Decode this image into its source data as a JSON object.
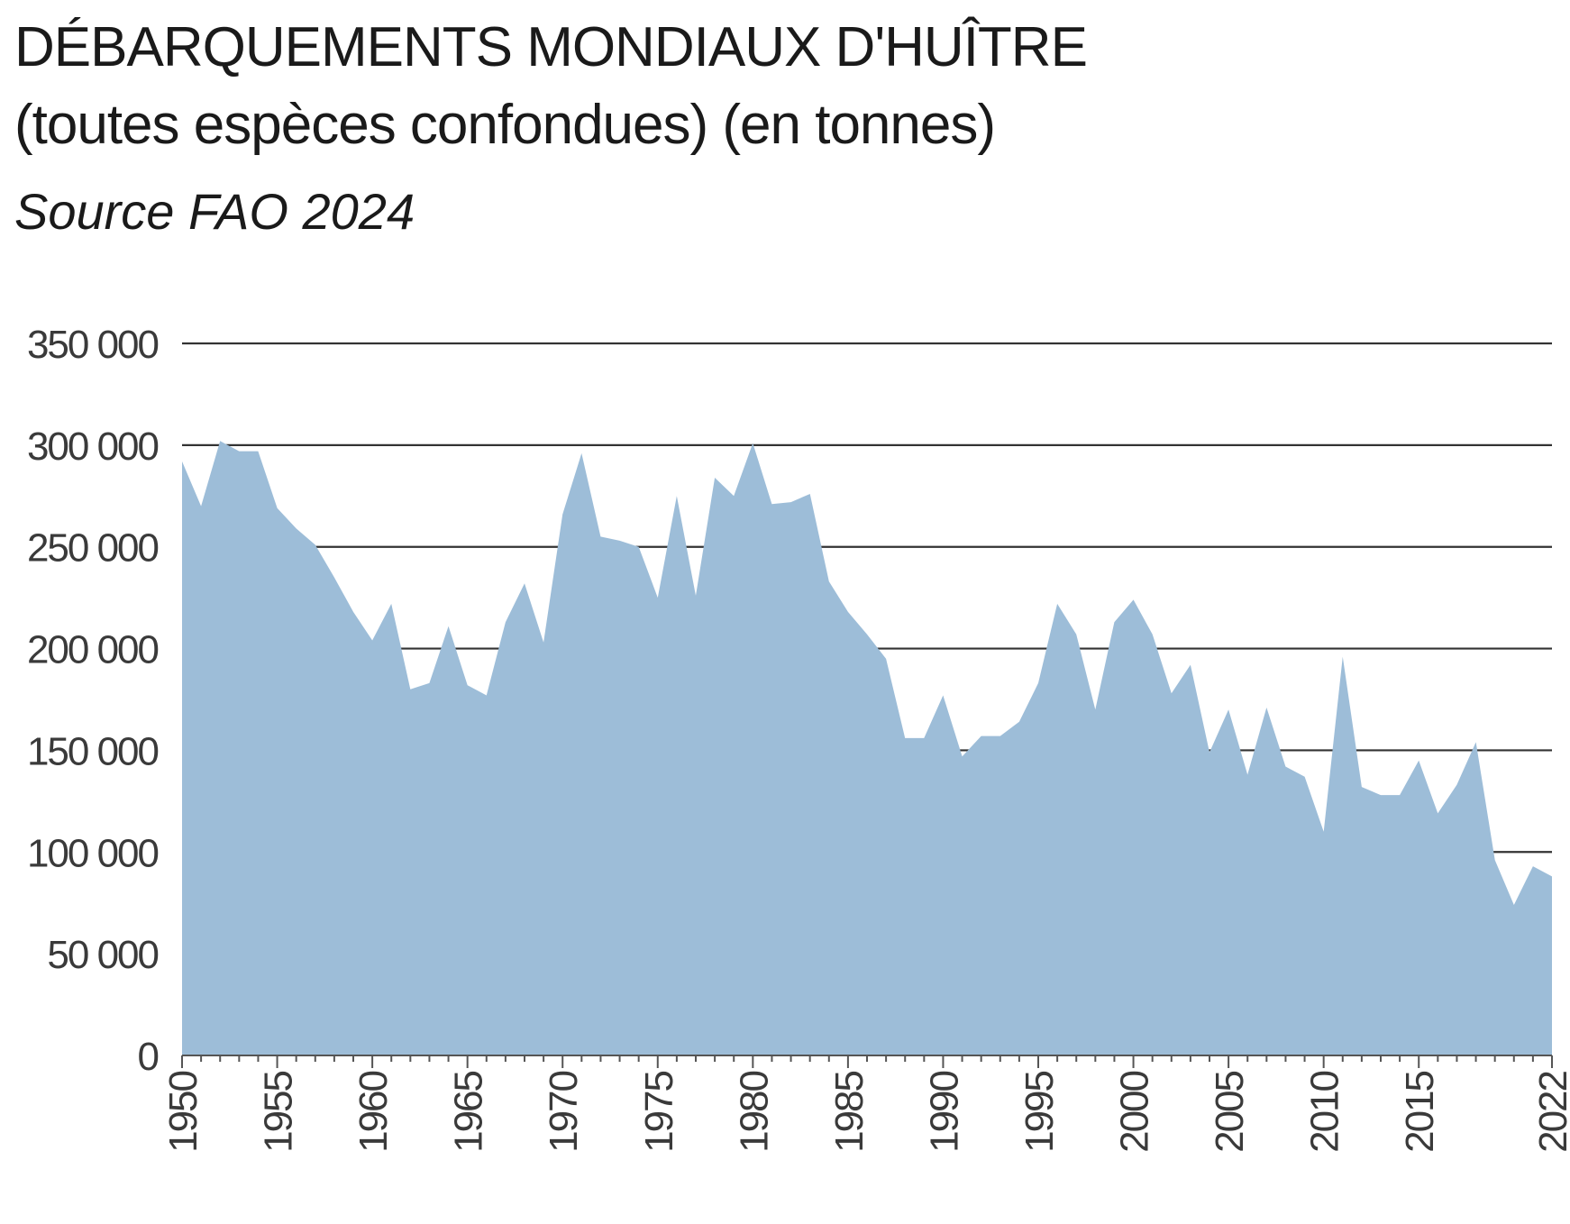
{
  "header": {
    "title": "DÉBARQUEMENTS MONDIAUX D'HUÎTRE",
    "subtitle": "(toutes espèces confondues) (en tonnes)",
    "source": "Source FAO 2024"
  },
  "colors": {
    "area": "#9dbdd8",
    "grid": "#333333",
    "axis": "#555555",
    "text": "#3a3a3a"
  },
  "chart_data": {
    "type": "area",
    "title": "DÉBARQUEMENTS MONDIAUX D'HUÎTRE",
    "subtitle": "(toutes espèces confondues) (en tonnes)",
    "xlabel": "",
    "ylabel": "",
    "ylim": [
      0,
      350000
    ],
    "xlim": [
      1950,
      2022
    ],
    "grid": true,
    "yticks": [
      0,
      50000,
      100000,
      150000,
      200000,
      250000,
      300000,
      350000
    ],
    "ytick_labels": [
      "0",
      "50 000",
      "100 000",
      "150 000",
      "200 000",
      "250 000",
      "300 000",
      "350 000"
    ],
    "xticks": [
      1950,
      1955,
      1960,
      1965,
      1970,
      1975,
      1980,
      1985,
      1990,
      1995,
      2000,
      2005,
      2010,
      2015,
      2022
    ],
    "xtick_labels": [
      "1950",
      "1955",
      "1960",
      "1965",
      "1970",
      "1975",
      "1980",
      "1985",
      "1990",
      "1995",
      "2000",
      "2005",
      "2010",
      "2015",
      "2022"
    ],
    "x": [
      1950,
      1951,
      1952,
      1953,
      1954,
      1955,
      1956,
      1957,
      1958,
      1959,
      1960,
      1961,
      1962,
      1963,
      1964,
      1965,
      1966,
      1967,
      1968,
      1969,
      1970,
      1971,
      1972,
      1973,
      1974,
      1975,
      1976,
      1977,
      1978,
      1979,
      1980,
      1981,
      1982,
      1983,
      1984,
      1985,
      1986,
      1987,
      1988,
      1989,
      1990,
      1991,
      1992,
      1993,
      1994,
      1995,
      1996,
      1997,
      1998,
      1999,
      2000,
      2001,
      2002,
      2003,
      2004,
      2005,
      2006,
      2007,
      2008,
      2009,
      2010,
      2011,
      2012,
      2013,
      2014,
      2015,
      2016,
      2017,
      2018,
      2019,
      2020,
      2021,
      2022
    ],
    "values": [
      292000,
      270000,
      302000,
      297000,
      297000,
      269000,
      259000,
      251000,
      235000,
      218000,
      204000,
      222000,
      180000,
      183000,
      211000,
      182000,
      177000,
      213000,
      232000,
      203000,
      266000,
      296000,
      255000,
      253000,
      250000,
      225000,
      275000,
      226000,
      284000,
      275000,
      301000,
      271000,
      272000,
      276000,
      233000,
      218000,
      207000,
      195000,
      156000,
      156000,
      177000,
      147000,
      157000,
      157000,
      164000,
      183000,
      222000,
      207000,
      170000,
      213000,
      224000,
      207000,
      178000,
      192000,
      149000,
      170000,
      138000,
      171000,
      142000,
      137000,
      110000,
      196000,
      132000,
      128000,
      128000,
      145000,
      119000,
      133000,
      154000,
      96000,
      74000,
      93000,
      88000
    ]
  }
}
